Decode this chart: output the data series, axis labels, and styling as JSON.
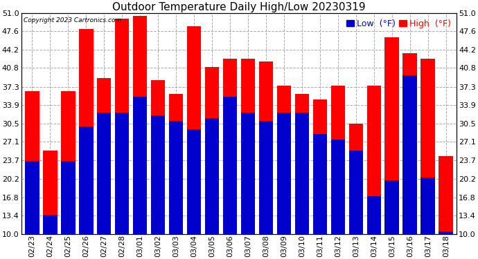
{
  "title": "Outdoor Temperature Daily High/Low 20230319",
  "copyright": "Copyright 2023 Cartronics.com",
  "legend_low": "Low  (°F)",
  "legend_high": "High  (°F)",
  "dates": [
    "02/23",
    "02/24",
    "02/25",
    "02/26",
    "02/27",
    "02/28",
    "03/01",
    "03/02",
    "03/03",
    "03/04",
    "03/05",
    "03/06",
    "03/07",
    "03/08",
    "03/09",
    "03/10",
    "03/11",
    "03/12",
    "03/13",
    "03/14",
    "03/15",
    "03/16",
    "03/17",
    "03/18"
  ],
  "highs": [
    36.5,
    25.5,
    36.5,
    48.0,
    39.0,
    50.0,
    50.5,
    38.5,
    36.0,
    48.5,
    41.0,
    42.5,
    42.5,
    42.0,
    37.5,
    36.0,
    35.0,
    37.5,
    30.5,
    37.5,
    46.5,
    43.5,
    42.5,
    24.5
  ],
  "lows": [
    23.5,
    13.5,
    23.5,
    30.0,
    32.5,
    32.5,
    35.5,
    32.0,
    31.0,
    29.5,
    31.5,
    35.5,
    32.5,
    31.0,
    32.5,
    32.5,
    28.5,
    27.5,
    25.5,
    17.0,
    20.0,
    39.5,
    20.5,
    10.5
  ],
  "bar_color_high": "#ff0000",
  "bar_color_low": "#0000cc",
  "background_color": "#ffffff",
  "grid_color": "#aaaaaa",
  "yticks": [
    10.0,
    13.4,
    16.8,
    20.2,
    23.7,
    27.1,
    30.5,
    33.9,
    37.3,
    40.8,
    44.2,
    47.6,
    51.0
  ],
  "ylim": [
    10.0,
    51.0
  ],
  "ybase": 10.0,
  "title_fontsize": 11,
  "tick_fontsize": 8,
  "legend_fontsize": 9
}
